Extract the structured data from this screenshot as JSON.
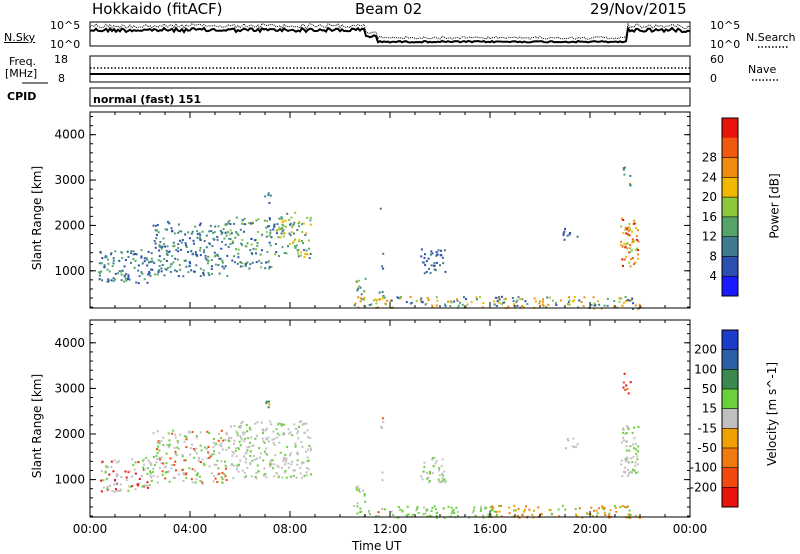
{
  "header": {
    "station": "Hokkaido (fitACF)",
    "beam": "Beam 02",
    "date": "29/Nov/2015"
  },
  "noise_panel": {
    "left_label": "N.Sky",
    "left_top_tick": "10^5",
    "left_bottom_tick": "10^0",
    "right_label": "N.Search",
    "right_top_tick": "10^5",
    "right_bottom_tick": "10^0"
  },
  "freq_panel": {
    "left_label_1": "Freq.",
    "left_label_2": "[MHz]",
    "left_top_tick": "18",
    "left_bottom_tick": "8",
    "right_label": "Nave",
    "right_top_tick": "60",
    "right_bottom_tick": "0"
  },
  "cpid_panel": {
    "label": "CPID",
    "value": "normal (fast) 151"
  },
  "x_axis": {
    "ticks": [
      "00:00",
      "04:00",
      "08:00",
      "12:00",
      "16:00",
      "20:00",
      "00:00"
    ],
    "label": "Time UT"
  },
  "chart_data": [
    {
      "type": "heatmap",
      "parameter": "Power",
      "ylabel": "Slant Range [km]",
      "y_ticks": [
        "1000",
        "2000",
        "3000",
        "4000"
      ],
      "ylim": [
        180,
        4500
      ],
      "xlim": [
        0,
        24
      ],
      "colorbar_label": "Power [dB]",
      "colorbar_ticks": [
        "4",
        "8",
        "12",
        "16",
        "20",
        "24",
        "28"
      ],
      "colors": [
        "#1a1aff",
        "#2c4fb0",
        "#3f7a8f",
        "#55a56b",
        "#8cc83e",
        "#f2b700",
        "#f08a10",
        "#f05a10",
        "#e8140e"
      ],
      "scatter_regions": [
        {
          "t0": 0.3,
          "t1": 2.5,
          "r0": 750,
          "r1": 1500,
          "density": 0.55,
          "color_idx": [
            1,
            2,
            3
          ]
        },
        {
          "t0": 2.5,
          "t1": 5.5,
          "r0": 900,
          "r1": 2100,
          "density": 0.5,
          "color_idx": [
            1,
            2,
            3
          ]
        },
        {
          "t0": 5.5,
          "t1": 7.5,
          "r0": 1050,
          "r1": 2200,
          "density": 0.45,
          "color_idx": [
            1,
            2,
            3,
            4
          ]
        },
        {
          "t0": 7.5,
          "t1": 8.8,
          "r0": 1300,
          "r1": 2300,
          "density": 0.55,
          "color_idx": [
            2,
            3,
            4,
            5
          ]
        },
        {
          "t0": 6.9,
          "t1": 7.2,
          "r0": 2500,
          "r1": 2800,
          "density": 0.5,
          "color_idx": [
            1,
            2
          ]
        },
        {
          "t0": 10.6,
          "t1": 11.0,
          "r0": 500,
          "r1": 900,
          "density": 0.6,
          "color_idx": [
            2,
            3,
            4
          ]
        },
        {
          "t0": 11.5,
          "t1": 11.7,
          "r0": 300,
          "r1": 2500,
          "density": 0.15,
          "color_idx": [
            1,
            2
          ]
        },
        {
          "t0": 13.2,
          "t1": 14.2,
          "r0": 950,
          "r1": 1500,
          "density": 0.6,
          "color_idx": [
            1,
            2
          ]
        },
        {
          "t0": 10.5,
          "t1": 22.0,
          "r0": 180,
          "r1": 450,
          "density": 0.5,
          "color_idx": [
            1,
            2,
            3,
            4,
            5,
            6
          ]
        },
        {
          "t0": 18.9,
          "t1": 19.5,
          "r0": 1700,
          "r1": 1950,
          "density": 0.5,
          "color_idx": [
            1,
            2
          ]
        },
        {
          "t0": 21.2,
          "t1": 21.9,
          "r0": 1100,
          "r1": 2200,
          "density": 0.7,
          "color_idx": [
            4,
            5,
            6,
            7,
            8
          ]
        },
        {
          "t0": 21.3,
          "t1": 21.6,
          "r0": 2900,
          "r1": 3350,
          "density": 0.5,
          "color_idx": [
            2,
            3,
            5
          ]
        }
      ]
    },
    {
      "type": "heatmap",
      "parameter": "Velocity",
      "ylabel": "Slant Range [km]",
      "y_ticks": [
        "1000",
        "2000",
        "3000",
        "4000"
      ],
      "ylim": [
        180,
        4500
      ],
      "xlim": [
        0,
        24
      ],
      "colorbar_label": "Velocity [m s^-1]",
      "colorbar_ticks": [
        "200",
        "100",
        "50",
        "15",
        "-15",
        "-50",
        "-100",
        "-200"
      ],
      "colors": [
        "#1a3cc8",
        "#2b5fa8",
        "#3a8a50",
        "#6ccf3c",
        "#c0c0c0",
        "#f0a000",
        "#f07a10",
        "#f04a10",
        "#e8140e"
      ],
      "scatter_regions": [
        {
          "t0": 0.3,
          "t1": 2.5,
          "r0": 750,
          "r1": 1500,
          "density": 0.5,
          "color_idx": [
            3,
            4,
            4,
            8
          ]
        },
        {
          "t0": 2.5,
          "t1": 5.5,
          "r0": 900,
          "r1": 2100,
          "density": 0.45,
          "color_idx": [
            3,
            4,
            4,
            7
          ]
        },
        {
          "t0": 5.5,
          "t1": 8.8,
          "r0": 1050,
          "r1": 2300,
          "density": 0.5,
          "color_idx": [
            3,
            4,
            4,
            4
          ]
        },
        {
          "t0": 6.9,
          "t1": 7.2,
          "r0": 2500,
          "r1": 2800,
          "density": 0.5,
          "color_idx": [
            2,
            5
          ]
        },
        {
          "t0": 10.6,
          "t1": 11.0,
          "r0": 500,
          "r1": 900,
          "density": 0.6,
          "color_idx": [
            3,
            4
          ]
        },
        {
          "t0": 11.5,
          "t1": 11.7,
          "r0": 300,
          "r1": 2500,
          "density": 0.15,
          "color_idx": [
            4,
            7
          ]
        },
        {
          "t0": 13.2,
          "t1": 14.2,
          "r0": 950,
          "r1": 1500,
          "density": 0.6,
          "color_idx": [
            4,
            4,
            3
          ]
        },
        {
          "t0": 10.5,
          "t1": 16.0,
          "r0": 180,
          "r1": 450,
          "density": 0.5,
          "color_idx": [
            3,
            3,
            4
          ]
        },
        {
          "t0": 16.0,
          "t1": 22.0,
          "r0": 180,
          "r1": 450,
          "density": 0.5,
          "color_idx": [
            5,
            6,
            3
          ]
        },
        {
          "t0": 18.9,
          "t1": 19.5,
          "r0": 1700,
          "r1": 1950,
          "density": 0.5,
          "color_idx": [
            4
          ]
        },
        {
          "t0": 21.2,
          "t1": 21.9,
          "r0": 1100,
          "r1": 2200,
          "density": 0.7,
          "color_idx": [
            3,
            4,
            4
          ]
        },
        {
          "t0": 21.3,
          "t1": 21.6,
          "r0": 2900,
          "r1": 3350,
          "density": 0.5,
          "color_idx": [
            6,
            7,
            8
          ]
        }
      ]
    }
  ]
}
